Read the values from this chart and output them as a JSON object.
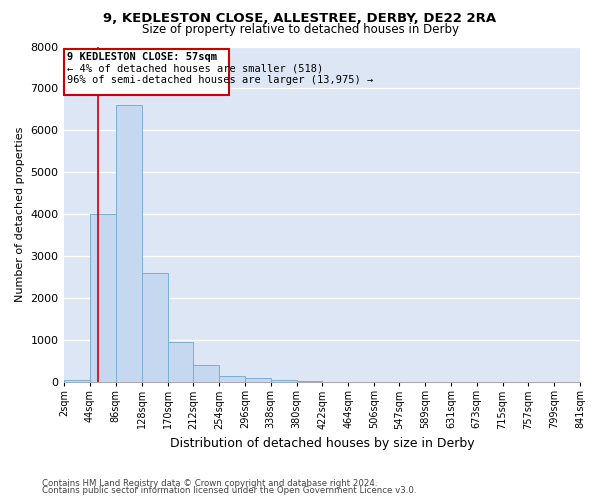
{
  "title1": "9, KEDLESTON CLOSE, ALLESTREE, DERBY, DE22 2RA",
  "title2": "Size of property relative to detached houses in Derby",
  "xlabel": "Distribution of detached houses by size in Derby",
  "ylabel": "Number of detached properties",
  "footer1": "Contains HM Land Registry data © Crown copyright and database right 2024.",
  "footer2": "Contains public sector information licensed under the Open Government Licence v3.0.",
  "annotation_title": "9 KEDLESTON CLOSE: 57sqm",
  "annotation_line1": "← 4% of detached houses are smaller (518)",
  "annotation_line2": "96% of semi-detached houses are larger (13,975) →",
  "property_size": 57,
  "bin_edges": [
    2,
    44,
    86,
    128,
    170,
    212,
    254,
    296,
    338,
    380,
    422,
    464,
    506,
    547,
    589,
    631,
    673,
    715,
    757,
    799,
    841
  ],
  "bar_heights": [
    50,
    4000,
    6600,
    2600,
    950,
    400,
    150,
    100,
    60,
    30,
    10,
    5,
    3,
    2,
    1,
    1,
    0,
    0,
    0,
    0
  ],
  "bar_color": "#c5d8f0",
  "bar_edge_color": "#7bafd4",
  "line_color": "#cc0000",
  "annotation_box_color": "#cc0000",
  "bg_color": "#dce6f5",
  "grid_color": "#ffffff",
  "ylim": [
    0,
    8000
  ],
  "yticks": [
    0,
    1000,
    2000,
    3000,
    4000,
    5000,
    6000,
    7000,
    8000
  ]
}
